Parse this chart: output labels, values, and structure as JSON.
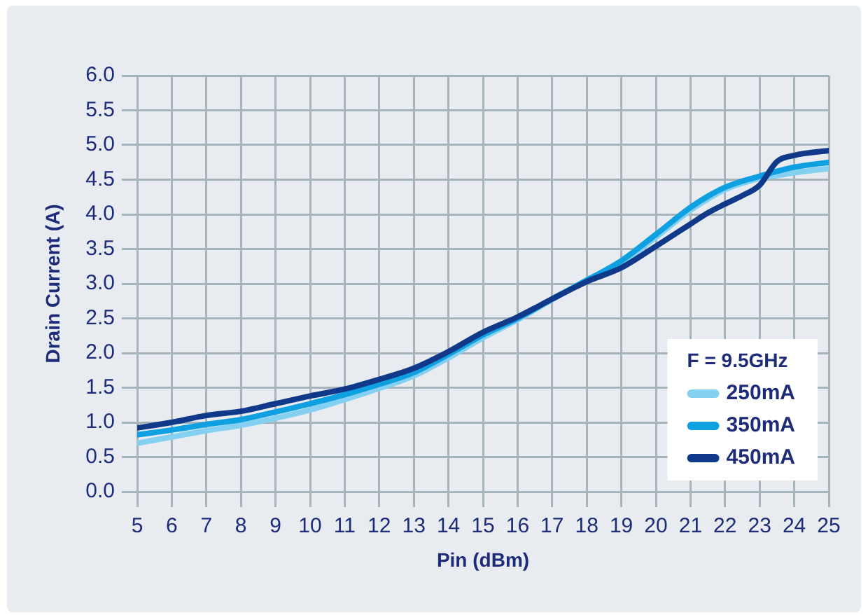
{
  "chart_data": {
    "type": "line",
    "xlabel": "Pin (dBm)",
    "ylabel": "Drain Current (A)",
    "legend_title": "F = 9.5GHz",
    "x": [
      5,
      6,
      7,
      8,
      9,
      10,
      11,
      12,
      13,
      14,
      15,
      16,
      17,
      18,
      19,
      20,
      21,
      21.5,
      22,
      22.5,
      23,
      23.5,
      24,
      25
    ],
    "xlim": [
      5,
      25
    ],
    "xticks": [
      5,
      6,
      7,
      8,
      9,
      10,
      11,
      12,
      13,
      14,
      15,
      16,
      17,
      18,
      19,
      20,
      21,
      22,
      23,
      24,
      25
    ],
    "ylim": [
      0,
      6
    ],
    "yticks": [
      {
        "value": 0,
        "label": "0.0"
      },
      0.5,
      {
        "value": 1,
        "label": "1.0"
      },
      1.5,
      {
        "value": 2,
        "label": "2.0"
      },
      2.5,
      {
        "value": 3,
        "label": "3.0"
      },
      3.5,
      {
        "value": 4,
        "label": "4.0"
      },
      4.5,
      {
        "value": 5,
        "label": "5.0"
      },
      5.5,
      {
        "value": 6,
        "label": "6.0"
      }
    ],
    "grid": true,
    "legend": "bottom right",
    "marker": "none",
    "line_style": "solid",
    "series": [
      {
        "name": "250mA",
        "color": "#84d0f0",
        "values": [
          0.7,
          0.79,
          0.88,
          0.96,
          1.06,
          1.18,
          1.33,
          1.49,
          1.67,
          1.93,
          2.22,
          2.48,
          2.77,
          3.05,
          3.3,
          3.67,
          4.06,
          4.22,
          4.36,
          4.45,
          4.52,
          4.56,
          4.6,
          4.66
        ]
      },
      {
        "name": "350mA",
        "color": "#0ea0e0",
        "values": [
          0.82,
          0.89,
          0.97,
          1.04,
          1.15,
          1.27,
          1.4,
          1.55,
          1.72,
          1.98,
          2.26,
          2.5,
          2.78,
          3.05,
          3.33,
          3.71,
          4.1,
          4.26,
          4.39,
          4.48,
          4.55,
          4.62,
          4.68,
          4.75
        ]
      },
      {
        "name": "450mA",
        "color": "#10398a",
        "values": [
          0.92,
          1.0,
          1.1,
          1.16,
          1.27,
          1.38,
          1.48,
          1.62,
          1.78,
          2.02,
          2.3,
          2.52,
          2.78,
          3.03,
          3.23,
          3.54,
          3.86,
          4.02,
          4.15,
          4.27,
          4.42,
          4.76,
          4.85,
          4.92
        ]
      }
    ]
  }
}
